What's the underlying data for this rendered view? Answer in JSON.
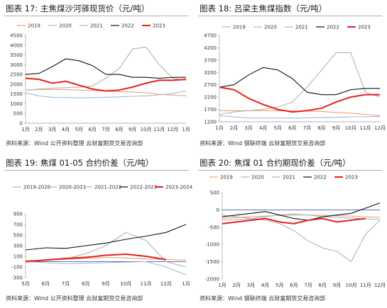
{
  "colors": {
    "2019": "#f4a06b",
    "2020": "#9dbbe0",
    "2021": "#b3b3b3",
    "2022": "#111111",
    "2023": "#e8201c",
    "zero": "#2f3e9e"
  },
  "panels": [
    {
      "title": "图表 17:  主焦煤沙河驿现货价（元/吨）",
      "source": "资料来源：Wind 公开资料整理 云财富期货交易咨询部"
    },
    {
      "title": "图表 18:  吕梁主焦煤指数（元/吨）",
      "source": "资料来源：Wind 钢联终端 云财富期货交易咨询部"
    },
    {
      "title": "图表 19:  焦煤 01-05 合约价差（元/吨）",
      "source": "资料来源：Wind 公开资料整理 云财富期货交易咨询部"
    },
    {
      "title": "图表 20:  焦煤 01 合约期现价差（元/吨）",
      "source": "资料来源：Wind 钢联终端 云财富期货交易咨询部"
    }
  ],
  "chart_data": [
    {
      "type": "line",
      "x": [
        "1月",
        "2月",
        "3月",
        "4月",
        "5月",
        "6月",
        "7月",
        "8月",
        "9月",
        "10月",
        "11月",
        "12月",
        "1月"
      ],
      "ylim": [
        0,
        4500
      ],
      "yticks": [
        0,
        500,
        1000,
        1500,
        2000,
        2500,
        3000,
        3500,
        4000,
        4500
      ],
      "legend": [
        "2019",
        "2020",
        "2021",
        "2022",
        "2023"
      ],
      "series": [
        {
          "name": "2019",
          "values": [
            1700,
            1720,
            1730,
            1720,
            1700,
            1680,
            1650,
            1620,
            1600,
            1560,
            1480,
            1440,
            1400
          ]
        },
        {
          "name": "2020",
          "values": [
            1550,
            1400,
            1330,
            1320,
            1300,
            1310,
            1330,
            1350,
            1380,
            1400,
            1450,
            1520,
            1650
          ]
        },
        {
          "name": "2021",
          "values": [
            1700,
            1750,
            1800,
            1820,
            1850,
            1900,
            2300,
            2800,
            3800,
            3900,
            3000,
            2300,
            2200
          ]
        },
        {
          "name": "2022",
          "values": [
            2500,
            2550,
            2900,
            3300,
            3200,
            2950,
            2500,
            2500,
            2350,
            2350,
            2300,
            2350,
            2350
          ]
        },
        {
          "name": "2023",
          "values": [
            2300,
            2250,
            2050,
            2150,
            1950,
            1750,
            1650,
            1700,
            1850,
            2050,
            2200,
            2200,
            2250
          ]
        }
      ]
    },
    {
      "type": "line",
      "x": [
        "1月",
        "2月",
        "3月",
        "4月",
        "5月",
        "6月",
        "7月",
        "8月",
        "9月",
        "10月",
        "11月",
        "12月"
      ],
      "ylim": [
        1200,
        4700
      ],
      "yticks": [
        1200,
        1700,
        2200,
        2700,
        3200,
        3700,
        4200,
        4700
      ],
      "legend": [
        "2019",
        "2020",
        "2021",
        "2022",
        "2023"
      ],
      "series": [
        {
          "name": "2019",
          "values": [
            1650,
            1650,
            1650,
            1650,
            1650,
            1640,
            1630,
            1620,
            1580,
            1550,
            1500,
            1450
          ]
        },
        {
          "name": "2020",
          "values": [
            1450,
            1400,
            1350,
            1350,
            1350,
            1350,
            1360,
            1370,
            1380,
            1400,
            1400,
            1420
          ]
        },
        {
          "name": "2021",
          "values": [
            1500,
            1600,
            1650,
            1700,
            1800,
            2000,
            2600,
            3300,
            4000,
            4000,
            2400,
            2200
          ]
        },
        {
          "name": "2022",
          "values": [
            2600,
            2700,
            3100,
            3400,
            3300,
            2950,
            2400,
            2300,
            2300,
            2500,
            2550,
            2550
          ]
        },
        {
          "name": "2023",
          "values": [
            2600,
            2500,
            2150,
            1900,
            1700,
            1600,
            1650,
            1750,
            2000,
            2200,
            2300,
            2300
          ]
        }
      ]
    },
    {
      "type": "line",
      "x": [
        "5月",
        "6月",
        "7月",
        "8月",
        "9月",
        "10月",
        "11月",
        "12月",
        "1月"
      ],
      "ylim": [
        -300,
        900
      ],
      "yticks": [
        -300,
        -100,
        100,
        300,
        500,
        700,
        900
      ],
      "legend": [
        "2019-2020",
        "2020-2021",
        "2021-2022",
        "2022-2023",
        "2023-2024"
      ],
      "series": [
        {
          "name": "2019-2020",
          "values": [
            20,
            30,
            40,
            60,
            80,
            70,
            50,
            40,
            30
          ]
        },
        {
          "name": "2020-2021",
          "values": [
            0,
            -20,
            -40,
            -30,
            -20,
            -10,
            0,
            -100,
            -250
          ]
        },
        {
          "name": "2021-2022",
          "values": [
            0,
            20,
            50,
            150,
            300,
            550,
            400,
            0,
            -100
          ]
        },
        {
          "name": "2022-2023",
          "values": [
            220,
            260,
            250,
            300,
            350,
            420,
            480,
            550,
            700
          ]
        },
        {
          "name": "2023-2024",
          "values": [
            0,
            30,
            60,
            80,
            120,
            140,
            100,
            40,
            null
          ]
        }
      ]
    },
    {
      "type": "line",
      "x": [
        "1月",
        "2月",
        "3月",
        "4月",
        "5月",
        "6月",
        "7月",
        "8月",
        "9月",
        "10月",
        "11月",
        "12月"
      ],
      "ylim": [
        -2000,
        500
      ],
      "yticks": [
        -2000,
        -1500,
        -1000,
        -500,
        0,
        500
      ],
      "legend": [
        "2019",
        "2020",
        "2021",
        "2022",
        "2023"
      ],
      "series": [
        {
          "name": "2019",
          "values": [
            -250,
            -220,
            -200,
            -180,
            -160,
            -150,
            -150,
            -160,
            -170,
            -180,
            -200,
            -220
          ]
        },
        {
          "name": "2020",
          "values": [
            -300,
            -280,
            -260,
            -200,
            -150,
            -120,
            -150,
            -200,
            -220,
            -240,
            -260,
            -280
          ]
        },
        {
          "name": "2021",
          "values": [
            -150,
            -200,
            -250,
            -300,
            -400,
            -600,
            -900,
            -1100,
            -1200,
            -1500,
            -700,
            -300
          ]
        },
        {
          "name": "2022",
          "values": [
            -200,
            -150,
            -100,
            -50,
            -150,
            -250,
            -300,
            -200,
            -150,
            -100,
            50,
            200
          ]
        },
        {
          "name": "2023",
          "values": [
            -400,
            -350,
            -300,
            -250,
            -350,
            -400,
            -300,
            -250,
            -350,
            -300,
            -250,
            null
          ]
        }
      ]
    }
  ]
}
